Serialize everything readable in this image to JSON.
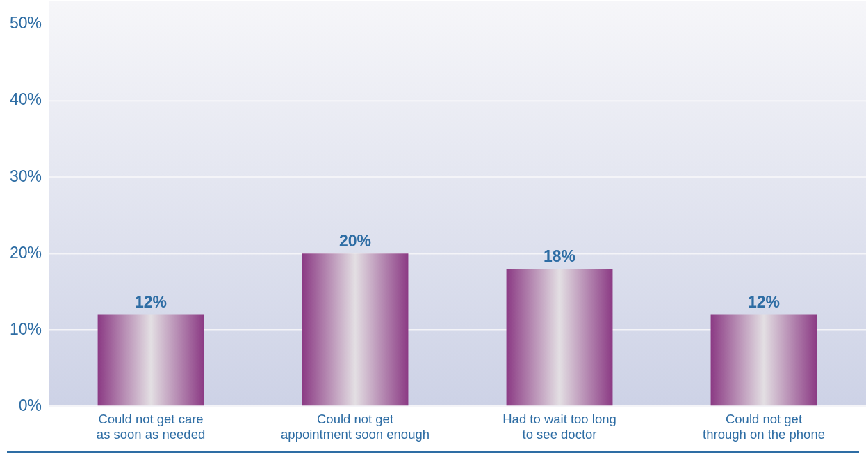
{
  "chart_data": {
    "type": "bar",
    "categories": [
      "Could not get care\nas soon as needed",
      "Could not get\nappointment soon enough",
      "Had to wait too long\nto see doctor",
      "Could not get\nthrough on the phone"
    ],
    "values": [
      12,
      20,
      18,
      12
    ],
    "color": "#8b3a84",
    "ylim": [
      0,
      53
    ],
    "yticks": [
      {
        "value": 0,
        "label": "0%"
      },
      {
        "value": 10,
        "label": "10%"
      },
      {
        "value": 20,
        "label": "20%"
      },
      {
        "value": 30,
        "label": "30%"
      },
      {
        "value": 40,
        "label": "40%"
      },
      {
        "value": 50,
        "label": "50%"
      }
    ],
    "value_labels": [
      "12%",
      "20%",
      "18%",
      "12%"
    ],
    "grid": "y"
  }
}
